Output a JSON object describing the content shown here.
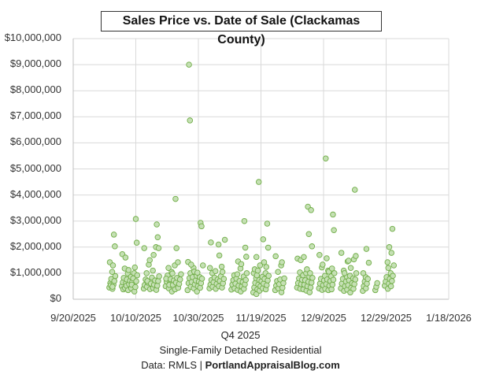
{
  "chart_data": {
    "type": "scatter",
    "title": "Sales Price vs. Date of Sale (Clackamas County)",
    "xlabel": "Q4 2025",
    "subtitle": "Single-Family Detached Residential",
    "source_prefix": "Data: RMLS | ",
    "source_site": "PortlandAppraisalBlog.com",
    "xlim": [
      "9/20/2025",
      "1/18/2026"
    ],
    "ylim": [
      0,
      10000000
    ],
    "x_ticks": [
      "9/20/2025",
      "10/10/2025",
      "10/30/2025",
      "11/19/2025",
      "12/9/2025",
      "12/29/2025",
      "1/18/2026"
    ],
    "y_ticks": [
      "$0",
      "$1,000,000",
      "$2,000,000",
      "$3,000,000",
      "$4,000,000",
      "$5,000,000",
      "$6,000,000",
      "$7,000,000",
      "$8,000,000",
      "$9,000,000",
      "$10,000,000"
    ],
    "grid": true,
    "legend": "none",
    "marker_fill": "#c5e0b4",
    "marker_stroke": "#70ad47",
    "sales": [
      {
        "date": "10/2/2025",
        "prices": [
          450000,
          620000,
          780000,
          1050000,
          1420000,
          540000
        ]
      },
      {
        "date": "10/3/2025",
        "prices": [
          400000,
          560000,
          700000,
          890000,
          1300000,
          2480000,
          2030000,
          480000
        ]
      },
      {
        "date": "10/6/2025",
        "prices": [
          500000,
          650000,
          820000,
          1180000,
          1730000,
          380000
        ]
      },
      {
        "date": "10/7/2025",
        "prices": [
          430000,
          610000,
          760000,
          990000,
          1600000,
          520000
        ]
      },
      {
        "date": "10/8/2025",
        "prices": [
          350000,
          580000,
          710000,
          860000,
          1120000
        ]
      },
      {
        "date": "10/9/2025",
        "prices": [
          420000,
          660000,
          800000,
          1000000,
          560000
        ]
      },
      {
        "date": "10/10/2025",
        "prices": [
          300000,
          470000,
          690000,
          920000,
          1220000,
          3080000,
          2170000
        ]
      },
      {
        "date": "10/13/2025",
        "prices": [
          410000,
          550000,
          760000,
          1000000,
          1960000
        ]
      },
      {
        "date": "10/14/2025",
        "prices": [
          480000,
          640000,
          1330000,
          1500000,
          700000
        ]
      },
      {
        "date": "10/15/2025",
        "prices": [
          390000,
          600000,
          830000,
          1100000
        ]
      },
      {
        "date": "10/16/2025",
        "prices": [
          430000,
          560000,
          720000,
          2000000,
          1700000
        ]
      },
      {
        "date": "10/17/2025",
        "prices": [
          360000,
          520000,
          700000,
          880000,
          2870000,
          2380000,
          1960000
        ]
      },
      {
        "date": "10/20/2025",
        "prices": [
          500000,
          680000,
          910000,
          1200000,
          790000
        ]
      },
      {
        "date": "10/21/2025",
        "prices": [
          420000,
          600000,
          770000,
          1050000,
          550000
        ]
      },
      {
        "date": "10/22/2025",
        "prices": [
          300000,
          550000,
          720000,
          1300000,
          990000
        ]
      },
      {
        "date": "10/23/2025",
        "prices": [
          380000,
          640000,
          820000,
          1420000,
          3850000,
          1960000
        ]
      },
      {
        "date": "10/24/2025",
        "prices": [
          440000,
          590000,
          760000,
          960000
        ]
      },
      {
        "date": "10/27/2025",
        "prices": [
          350000,
          620000,
          810000,
          1000000,
          1430000,
          9000000,
          6860000
        ]
      },
      {
        "date": "10/28/2025",
        "prices": [
          480000,
          660000,
          850000,
          1200000,
          1330000
        ]
      },
      {
        "date": "10/29/2025",
        "prices": [
          420000,
          570000,
          720000,
          900000,
          1060000
        ]
      },
      {
        "date": "10/30/2025",
        "prices": [
          300000,
          500000,
          680000,
          850000,
          1020000
        ]
      },
      {
        "date": "10/31/2025",
        "prices": [
          440000,
          620000,
          790000,
          1300000,
          2930000,
          2800000
        ]
      },
      {
        "date": "11/3/2025",
        "prices": [
          420000,
          560000,
          740000,
          1000000,
          1200000,
          2180000
        ]
      },
      {
        "date": "11/4/2025",
        "prices": [
          480000,
          650000,
          830000,
          1080000
        ]
      },
      {
        "date": "11/5/2025",
        "prices": [
          400000,
          590000,
          760000,
          2100000
        ]
      },
      {
        "date": "11/6/2025",
        "prices": [
          500000,
          700000,
          880000,
          1250000,
          1680000
        ]
      },
      {
        "date": "11/7/2025",
        "prices": [
          450000,
          610000,
          780000,
          2280000,
          1050000
        ]
      },
      {
        "date": "11/10/2025",
        "prices": [
          370000,
          560000,
          730000,
          920000
        ]
      },
      {
        "date": "11/11/2025",
        "prices": [
          420000,
          600000,
          790000,
          960000
        ]
      },
      {
        "date": "11/12/2025",
        "prices": [
          360000,
          520000,
          700000,
          1180000,
          1450000
        ]
      },
      {
        "date": "11/13/2025",
        "prices": [
          300000,
          490000,
          660000,
          870000,
          1350000
        ]
      },
      {
        "date": "11/14/2025",
        "prices": [
          400000,
          570000,
          740000,
          1000000,
          3000000,
          1980000,
          1630000
        ]
      },
      {
        "date": "11/17/2025",
        "prices": [
          260000,
          450000,
          630000,
          800000,
          1000000,
          1150000
        ]
      },
      {
        "date": "11/18/2025",
        "prices": [
          200000,
          380000,
          560000,
          740000,
          920000,
          1100000,
          4500000,
          1620000
        ]
      },
      {
        "date": "11/19/2025",
        "prices": [
          330000,
          500000,
          690000,
          860000,
          1300000
        ]
      },
      {
        "date": "11/20/2025",
        "prices": [
          420000,
          600000,
          780000,
          1000000,
          2300000,
          1420000
        ]
      },
      {
        "date": "11/21/2025",
        "prices": [
          380000,
          540000,
          720000,
          900000,
          1240000,
          2900000,
          1980000
        ]
      },
      {
        "date": "11/24/2025",
        "prices": [
          350000,
          520000,
          700000,
          1050000,
          1650000
        ]
      },
      {
        "date": "11/25/2025",
        "prices": [
          420000,
          580000,
          760000,
          1300000
        ]
      },
      {
        "date": "11/26/2025",
        "prices": [
          270000,
          440000,
          620000,
          800000,
          1420000
        ]
      },
      {
        "date": "12/1/2025",
        "prices": [
          450000,
          620000,
          800000,
          1030000,
          1560000
        ]
      },
      {
        "date": "12/2/2025",
        "prices": [
          400000,
          580000,
          750000,
          920000,
          1500000
        ]
      },
      {
        "date": "12/3/2025",
        "prices": [
          380000,
          560000,
          730000,
          1000000,
          1620000
        ]
      },
      {
        "date": "12/4/2025",
        "prices": [
          330000,
          500000,
          670000,
          860000,
          1150000,
          3550000,
          2500000
        ]
      },
      {
        "date": "12/5/2025",
        "prices": [
          270000,
          450000,
          640000,
          820000,
          1000000,
          3420000,
          2030000
        ]
      },
      {
        "date": "12/8/2025",
        "prices": [
          420000,
          600000,
          780000,
          1220000,
          1700000
        ]
      },
      {
        "date": "12/9/2025",
        "prices": [
          360000,
          540000,
          720000,
          900000,
          1330000
        ]
      },
      {
        "date": "12/10/2025",
        "prices": [
          400000,
          580000,
          760000,
          1100000,
          5400000,
          1570000
        ]
      },
      {
        "date": "12/11/2025",
        "prices": [
          350000,
          520000,
          700000,
          880000,
          1060000
        ]
      },
      {
        "date": "12/12/2025",
        "prices": [
          380000,
          560000,
          750000,
          1000000,
          1180000,
          3250000,
          2650000
        ]
      },
      {
        "date": "12/15/2025",
        "prices": [
          420000,
          600000,
          780000,
          1100000,
          1780000
        ]
      },
      {
        "date": "12/16/2025",
        "prices": [
          320000,
          500000,
          680000,
          860000,
          1000000
        ]
      },
      {
        "date": "12/17/2025",
        "prices": [
          370000,
          540000,
          730000,
          900000,
          1450000,
          1480000
        ]
      },
      {
        "date": "12/18/2025",
        "prices": [
          260000,
          440000,
          620000,
          800000,
          1200000
        ]
      },
      {
        "date": "12/19/2025",
        "prices": [
          400000,
          580000,
          760000,
          1000000,
          1530000,
          4200000,
          1660000
        ]
      },
      {
        "date": "12/22/2025",
        "prices": [
          320000,
          500000,
          680000,
          850000,
          1000000
        ]
      },
      {
        "date": "12/23/2025",
        "prices": [
          420000,
          600000,
          780000,
          1400000,
          1930000
        ]
      },
      {
        "date": "12/26/2025",
        "prices": [
          350000,
          480000,
          620000
        ]
      },
      {
        "date": "12/29/2025",
        "prices": [
          520000,
          680000,
          850000,
          1420000
        ]
      },
      {
        "date": "12/30/2025",
        "prices": [
          400000,
          600000,
          780000,
          1000000,
          1200000,
          2000000
        ]
      },
      {
        "date": "12/31/2025",
        "prices": [
          500000,
          700000,
          900000,
          1300000,
          1780000,
          2700000
        ]
      }
    ]
  }
}
